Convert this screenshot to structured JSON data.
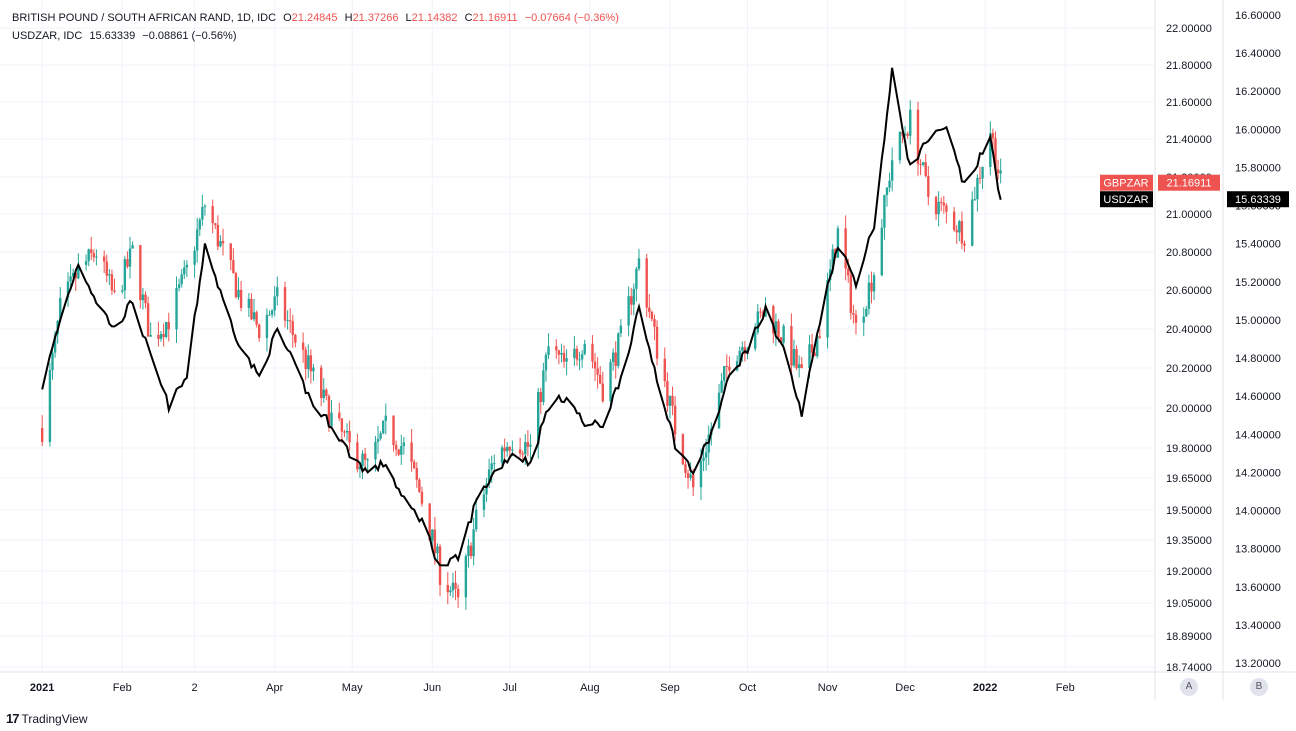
{
  "legend": {
    "main": {
      "title": "BRITISH POUND / SOUTH AFRICAN RAND, 1D, IDC",
      "o_key": "O",
      "o_val": "21.24845",
      "h_key": "H",
      "h_val": "21.37266",
      "l_key": "L",
      "l_val": "21.14382",
      "c_key": "C",
      "c_val": "21.16911",
      "change": "−0.07664 (−0.36%)"
    },
    "compare": {
      "title": "USDZAR, IDC",
      "value": "15.63339",
      "change": "−0.08861 (−0.56%)"
    }
  },
  "branding": {
    "mark": "17",
    "name": "TradingView"
  },
  "axis_buttons": {
    "a": "A",
    "b": "B"
  },
  "colors": {
    "up": "#26a69a",
    "down": "#ef5350",
    "line": "#000000",
    "grid": "#f0f3fa"
  },
  "chart_data": {
    "type": "candlestick+line",
    "title": "BRITISH POUND / SOUTH AFRICAN RAND, 1D, IDC",
    "x_ticks": [
      {
        "label": "2021",
        "bold": true
      },
      {
        "label": "Feb"
      },
      {
        "label": "2"
      },
      {
        "label": "Apr"
      },
      {
        "label": "May"
      },
      {
        "label": "Jun"
      },
      {
        "label": "Jul"
      },
      {
        "label": "Aug"
      },
      {
        "label": "Sep"
      },
      {
        "label": "Oct"
      },
      {
        "label": "Nov"
      },
      {
        "label": "Dec"
      },
      {
        "label": "2022",
        "bold": true
      },
      {
        "label": "Feb"
      }
    ],
    "left_axis": {
      "series": "GBPZAR",
      "range": [
        18.74,
        22.1
      ],
      "ticks": [
        "22.00000",
        "21.80000",
        "21.60000",
        "21.40000",
        "21.20000",
        "21.00000",
        "20.80000",
        "20.60000",
        "20.40000",
        "20.20000",
        "20.00000",
        "19.80000",
        "19.65000",
        "19.50000",
        "19.35000",
        "19.20000",
        "19.05000",
        "18.89000",
        "18.74000"
      ],
      "last_label": "GBPZAR",
      "last_value": "21.16911"
    },
    "right_axis": {
      "series": "USDZAR",
      "range": [
        13.2,
        16.65
      ],
      "ticks": [
        "16.60000",
        "16.40000",
        "16.20000",
        "16.00000",
        "15.80000",
        "15.60000",
        "15.40000",
        "15.20000",
        "15.00000",
        "14.80000",
        "14.60000",
        "14.40000",
        "14.20000",
        "14.00000",
        "13.80000",
        "13.60000",
        "13.40000",
        "13.20000"
      ],
      "last_label": "USDZAR",
      "last_value": "15.63339"
    },
    "series": [
      {
        "name": "GBPZAR",
        "kind": "candles",
        "closes_monthly": [
          [
            "2021-01-01",
            19.9
          ],
          [
            "2021-01-08",
            20.5
          ],
          [
            "2021-01-15",
            20.7
          ],
          [
            "2021-01-22",
            20.8
          ],
          [
            "2021-01-29",
            20.55
          ],
          [
            "2021-02-05",
            20.8
          ],
          [
            "2021-02-12",
            20.35
          ],
          [
            "2021-02-19",
            20.45
          ],
          [
            "2021-02-26",
            20.7
          ],
          [
            "2021-03-05",
            21.05
          ],
          [
            "2021-03-12",
            20.8
          ],
          [
            "2021-03-19",
            20.55
          ],
          [
            "2021-03-26",
            20.4
          ],
          [
            "2021-04-02",
            20.55
          ],
          [
            "2021-04-09",
            20.35
          ],
          [
            "2021-04-16",
            20.15
          ],
          [
            "2021-04-23",
            19.95
          ],
          [
            "2021-04-30",
            19.8
          ],
          [
            "2021-05-07",
            19.7
          ],
          [
            "2021-05-14",
            19.9
          ],
          [
            "2021-05-21",
            19.8
          ],
          [
            "2021-05-28",
            19.55
          ],
          [
            "2021-06-04",
            19.2
          ],
          [
            "2021-06-11",
            19.05
          ],
          [
            "2021-06-18",
            19.45
          ],
          [
            "2021-06-25",
            19.75
          ],
          [
            "2021-07-02",
            19.85
          ],
          [
            "2021-07-09",
            19.8
          ],
          [
            "2021-07-16",
            20.3
          ],
          [
            "2021-07-23",
            20.2
          ],
          [
            "2021-07-30",
            20.35
          ],
          [
            "2021-08-06",
            20.1
          ],
          [
            "2021-08-13",
            20.35
          ],
          [
            "2021-08-20",
            20.75
          ],
          [
            "2021-08-27",
            20.3
          ],
          [
            "2021-09-03",
            19.9
          ],
          [
            "2021-09-10",
            19.6
          ],
          [
            "2021-09-17",
            19.9
          ],
          [
            "2021-09-24",
            20.25
          ],
          [
            "2021-10-01",
            20.35
          ],
          [
            "2021-10-08",
            20.5
          ],
          [
            "2021-10-15",
            20.35
          ],
          [
            "2021-10-22",
            20.15
          ],
          [
            "2021-10-29",
            20.4
          ],
          [
            "2021-11-05",
            20.9
          ],
          [
            "2021-11-12",
            20.4
          ],
          [
            "2021-11-19",
            20.7
          ],
          [
            "2021-11-26",
            21.3
          ],
          [
            "2021-12-03",
            21.5
          ],
          [
            "2021-12-10",
            21.1
          ],
          [
            "2021-12-17",
            21.0
          ],
          [
            "2021-12-24",
            20.9
          ],
          [
            "2022-01-03",
            21.45
          ],
          [
            "2022-01-07",
            21.17
          ]
        ]
      },
      {
        "name": "USDZAR",
        "kind": "line",
        "closes_monthly": [
          [
            "2021-01-01",
            14.65
          ],
          [
            "2021-01-08",
            15.0
          ],
          [
            "2021-01-15",
            15.3
          ],
          [
            "2021-01-22",
            15.1
          ],
          [
            "2021-01-29",
            14.95
          ],
          [
            "2021-02-05",
            15.1
          ],
          [
            "2021-02-12",
            14.8
          ],
          [
            "2021-02-19",
            14.55
          ],
          [
            "2021-02-26",
            14.7
          ],
          [
            "2021-03-05",
            15.4
          ],
          [
            "2021-03-12",
            15.1
          ],
          [
            "2021-03-19",
            14.85
          ],
          [
            "2021-03-26",
            14.7
          ],
          [
            "2021-04-02",
            14.95
          ],
          [
            "2021-04-09",
            14.75
          ],
          [
            "2021-04-16",
            14.55
          ],
          [
            "2021-04-23",
            14.45
          ],
          [
            "2021-04-30",
            14.3
          ],
          [
            "2021-05-07",
            14.2
          ],
          [
            "2021-05-14",
            14.25
          ],
          [
            "2021-05-21",
            14.05
          ],
          [
            "2021-05-28",
            13.95
          ],
          [
            "2021-06-04",
            13.7
          ],
          [
            "2021-06-11",
            13.75
          ],
          [
            "2021-06-18",
            14.05
          ],
          [
            "2021-06-25",
            14.2
          ],
          [
            "2021-07-02",
            14.3
          ],
          [
            "2021-07-09",
            14.25
          ],
          [
            "2021-07-16",
            14.55
          ],
          [
            "2021-07-23",
            14.6
          ],
          [
            "2021-07-30",
            14.45
          ],
          [
            "2021-08-06",
            14.45
          ],
          [
            "2021-08-13",
            14.7
          ],
          [
            "2021-08-20",
            15.05
          ],
          [
            "2021-08-27",
            14.7
          ],
          [
            "2021-09-03",
            14.35
          ],
          [
            "2021-09-10",
            14.2
          ],
          [
            "2021-09-17",
            14.4
          ],
          [
            "2021-09-24",
            14.7
          ],
          [
            "2021-10-01",
            14.85
          ],
          [
            "2021-10-08",
            15.05
          ],
          [
            "2021-10-15",
            14.85
          ],
          [
            "2021-10-22",
            14.5
          ],
          [
            "2021-10-29",
            15.0
          ],
          [
            "2021-11-05",
            15.4
          ],
          [
            "2021-11-12",
            15.2
          ],
          [
            "2021-11-19",
            15.5
          ],
          [
            "2021-11-26",
            16.3
          ],
          [
            "2021-12-03",
            15.8
          ],
          [
            "2021-12-10",
            15.95
          ],
          [
            "2021-12-17",
            16.0
          ],
          [
            "2021-12-24",
            15.7
          ],
          [
            "2022-01-03",
            15.95
          ],
          [
            "2022-01-07",
            15.63
          ]
        ]
      }
    ]
  }
}
